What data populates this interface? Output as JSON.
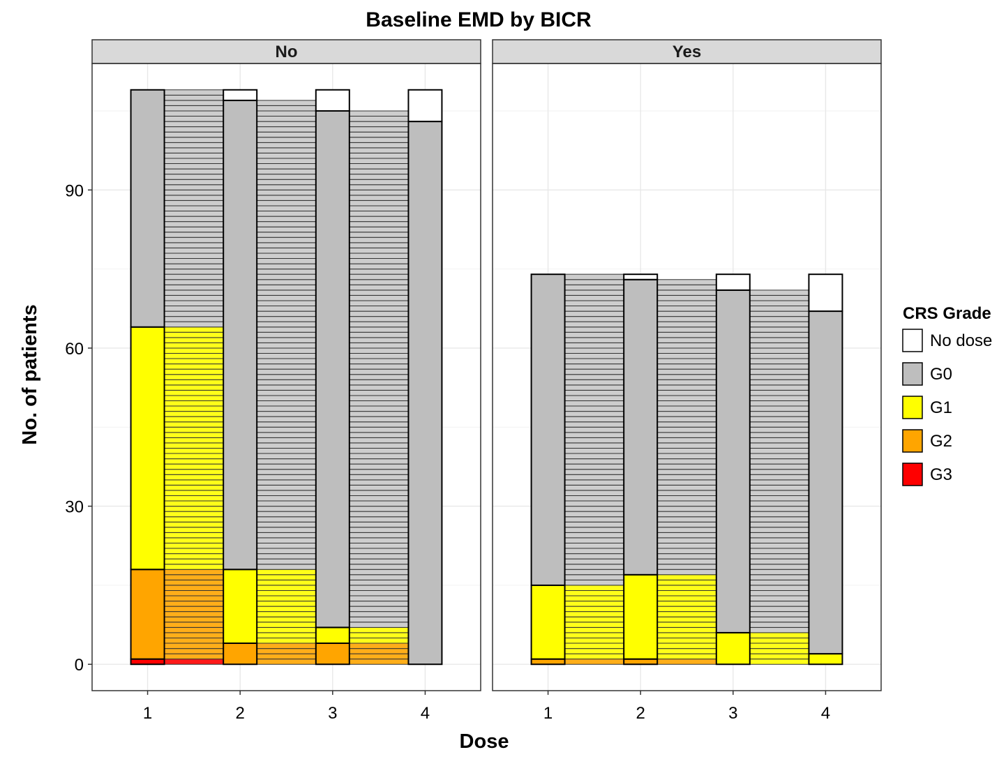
{
  "chart_data": {
    "type": "alluvial",
    "title": "Baseline EMD by BICR",
    "xlabel": "Dose",
    "ylabel": "No. of patients",
    "x": [
      "1",
      "2",
      "3",
      "4"
    ],
    "y_ticks": [
      0,
      30,
      60,
      90
    ],
    "ylim": [
      -5,
      114
    ],
    "grid": true,
    "legend": {
      "title": "CRS Grade",
      "position": "right",
      "items": [
        {
          "label": "No dose",
          "color": "#ffffff"
        },
        {
          "label": "G0",
          "color": "#bebebe"
        },
        {
          "label": "G1",
          "color": "#ffff00"
        },
        {
          "label": "G2",
          "color": "#ffa500"
        },
        {
          "label": "G3",
          "color": "#ff0000"
        }
      ]
    },
    "panels": [
      {
        "label": "No",
        "total": 109,
        "stacks": [
          {
            "dose": "1",
            "G3": 1,
            "G2": 17,
            "G1": 46,
            "G0": 45,
            "No dose": 0
          },
          {
            "dose": "2",
            "G3": 0,
            "G2": 4,
            "G1": 14,
            "G0": 89,
            "No dose": 2
          },
          {
            "dose": "3",
            "G3": 0,
            "G2": 4,
            "G1": 3,
            "G0": 98,
            "No dose": 4
          },
          {
            "dose": "4",
            "G3": 0,
            "G2": 0,
            "G1": 0,
            "G0": 103,
            "No dose": 6
          }
        ]
      },
      {
        "label": "Yes",
        "total": 74,
        "stacks": [
          {
            "dose": "1",
            "G3": 0,
            "G2": 1,
            "G1": 14,
            "G0": 59,
            "No dose": 0
          },
          {
            "dose": "2",
            "G3": 0,
            "G2": 1,
            "G1": 16,
            "G0": 56,
            "No dose": 1
          },
          {
            "dose": "3",
            "G3": 0,
            "G2": 0,
            "G1": 6,
            "G0": 65,
            "No dose": 3
          },
          {
            "dose": "4",
            "G3": 0,
            "G2": 0,
            "G1": 2,
            "G0": 65,
            "No dose": 7
          }
        ]
      }
    ],
    "transition_fill": {
      "G0": "#8c8c8c",
      "G1": "#e6e600",
      "G2": "#e69500",
      "G3": "#e00000"
    }
  }
}
